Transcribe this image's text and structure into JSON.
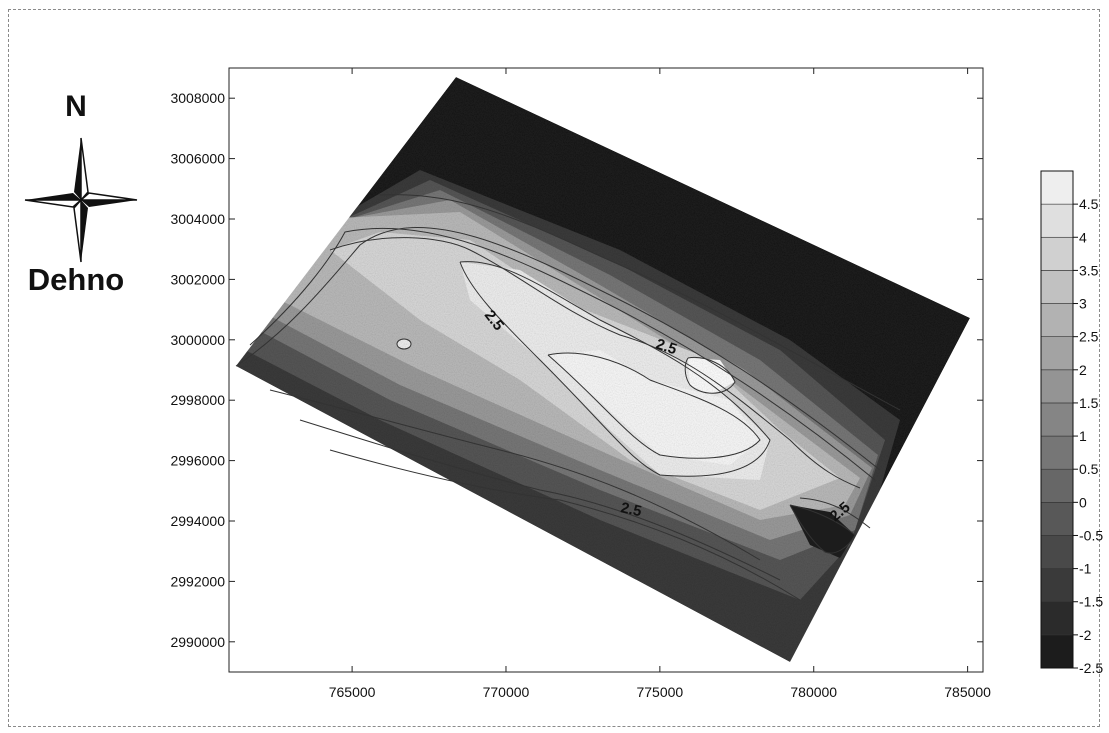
{
  "map": {
    "north_label": "N",
    "area_name": "Dehno",
    "x_axis": {
      "ticks": [
        765000,
        770000,
        775000,
        780000,
        785000
      ],
      "tick_labels": [
        "765000",
        "770000",
        "775000",
        "780000",
        "785000"
      ],
      "range": [
        761000,
        785500
      ]
    },
    "y_axis": {
      "ticks": [
        2990000,
        2992000,
        2994000,
        2996000,
        2998000,
        3000000,
        3002000,
        3004000,
        3006000,
        3008000
      ],
      "tick_labels": [
        "2990000",
        "2992000",
        "2994000",
        "2996000",
        "2998000",
        "3000000",
        "3002000",
        "3004000",
        "3006000",
        "3008000"
      ],
      "range": [
        2989000,
        3009000
      ]
    },
    "contour_labels": [
      "2.5",
      "2.5",
      "2.5",
      "2.5"
    ],
    "legend": {
      "levels": [
        -2.5,
        -2,
        -1.5,
        -1,
        -0.5,
        0,
        0.5,
        1,
        1.5,
        2,
        2.5,
        3,
        3.5,
        4,
        4.5
      ],
      "labels": [
        "-2.5",
        "-2",
        "-1.5",
        "-1",
        "-0.5",
        "0",
        "0.5",
        "1",
        "1.5",
        "2",
        "2.5",
        "3",
        "3.5",
        "4",
        "4.5"
      ],
      "range": [
        -2.5,
        5
      ]
    }
  }
}
